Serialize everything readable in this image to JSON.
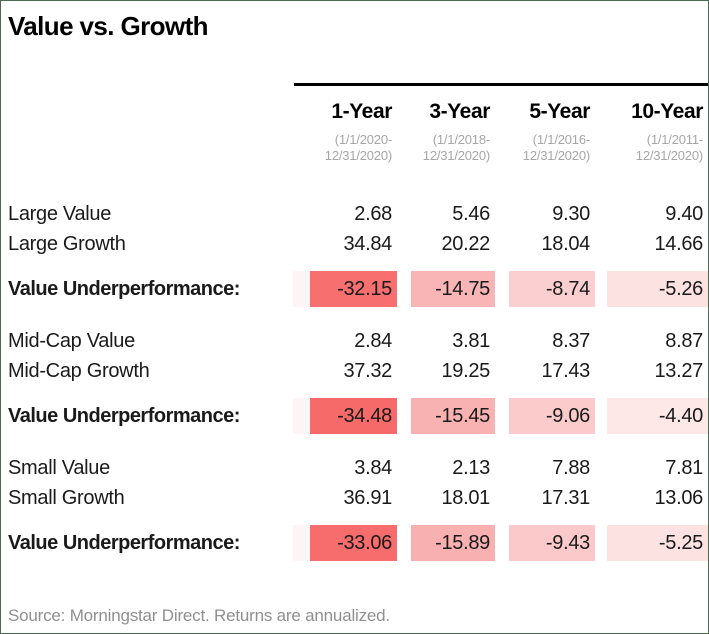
{
  "title": "Value vs. Growth",
  "source_note": "Source: Morningstar Direct. Returns are annualized.",
  "colors": {
    "frame_border": "#4b6b53",
    "header_rule": "#000000",
    "text": "#1a1a1a",
    "dates_gray": "#a6a6a6",
    "source_gray": "#8f8f8f",
    "band_strip": "#fdf5f5"
  },
  "table": {
    "columns": [
      {
        "label": "1-Year",
        "period1": "(1/1/2020-",
        "period2": "12/31/2020)"
      },
      {
        "label": "3-Year",
        "period1": "(1/1/2018-",
        "period2": "12/31/2020)"
      },
      {
        "label": "5-Year",
        "period1": "(1/1/2016-",
        "period2": "12/31/2020)"
      },
      {
        "label": "10-Year",
        "period1": "(1/1/2011-",
        "period2": "12/31/2020)"
      }
    ],
    "groups": [
      {
        "rows": [
          {
            "label": "Large Value",
            "values": [
              "2.68",
              "5.46",
              "9.30",
              "9.40"
            ]
          },
          {
            "label": "Large Growth",
            "values": [
              "34.84",
              "20.22",
              "18.04",
              "14.66"
            ]
          }
        ],
        "underperformance": {
          "label": "Value Underperformance:",
          "values": [
            "-32.15",
            "-14.75",
            "-8.74",
            "-5.26"
          ],
          "cell_colors": [
            "#f76f6f",
            "#f9b5b5",
            "#fbcfcf",
            "#fde2e2"
          ]
        }
      },
      {
        "rows": [
          {
            "label": "Mid-Cap Value",
            "values": [
              "2.84",
              "3.81",
              "8.37",
              "8.87"
            ]
          },
          {
            "label": "Mid-Cap Growth",
            "values": [
              "37.32",
              "19.25",
              "17.43",
              "13.27"
            ]
          }
        ],
        "underperformance": {
          "label": "Value Underperformance:",
          "values": [
            "-34.48",
            "-15.45",
            "-9.06",
            "-4.40"
          ],
          "cell_colors": [
            "#f66a6a",
            "#f9b2b2",
            "#fbcbcb",
            "#fde7e7"
          ]
        }
      },
      {
        "rows": [
          {
            "label": "Small Value",
            "values": [
              "3.84",
              "2.13",
              "7.88",
              "7.81"
            ]
          },
          {
            "label": "Small Growth",
            "values": [
              "36.91",
              "18.01",
              "17.31",
              "13.06"
            ]
          }
        ],
        "underperformance": {
          "label": "Value Underperformance:",
          "values": [
            "-33.06",
            "-15.89",
            "-9.43",
            "-5.25"
          ],
          "cell_colors": [
            "#f76c6c",
            "#f9b0b0",
            "#fbc9c9",
            "#fde2e2"
          ]
        }
      }
    ]
  },
  "chart_data": {
    "type": "table",
    "title": "Value vs. Growth",
    "columns": [
      "1-Year (1/1/2020-12/31/2020)",
      "3-Year (1/1/2018-12/31/2020)",
      "5-Year (1/1/2016-12/31/2020)",
      "10-Year (1/1/2011-12/31/2020)"
    ],
    "rows": [
      {
        "label": "Large Value",
        "values": [
          2.68,
          5.46,
          9.3,
          9.4
        ]
      },
      {
        "label": "Large Growth",
        "values": [
          34.84,
          20.22,
          18.04,
          14.66
        ]
      },
      {
        "label": "Value Underperformance",
        "values": [
          -32.15,
          -14.75,
          -8.74,
          -5.26
        ]
      },
      {
        "label": "Mid-Cap Value",
        "values": [
          2.84,
          3.81,
          8.37,
          8.87
        ]
      },
      {
        "label": "Mid-Cap Growth",
        "values": [
          37.32,
          19.25,
          17.43,
          13.27
        ]
      },
      {
        "label": "Value Underperformance",
        "values": [
          -34.48,
          -15.45,
          -9.06,
          -4.4
        ]
      },
      {
        "label": "Small Value",
        "values": [
          3.84,
          2.13,
          7.88,
          7.81
        ]
      },
      {
        "label": "Small Growth",
        "values": [
          36.91,
          18.01,
          17.31,
          13.06
        ]
      },
      {
        "label": "Value Underperformance",
        "values": [
          -33.06,
          -15.89,
          -9.43,
          -5.25
        ]
      }
    ],
    "notes": "Negative Value Underperformance cells are shaded red; intensity scales with magnitude.",
    "source": "Source: Morningstar Direct. Returns are annualized."
  }
}
